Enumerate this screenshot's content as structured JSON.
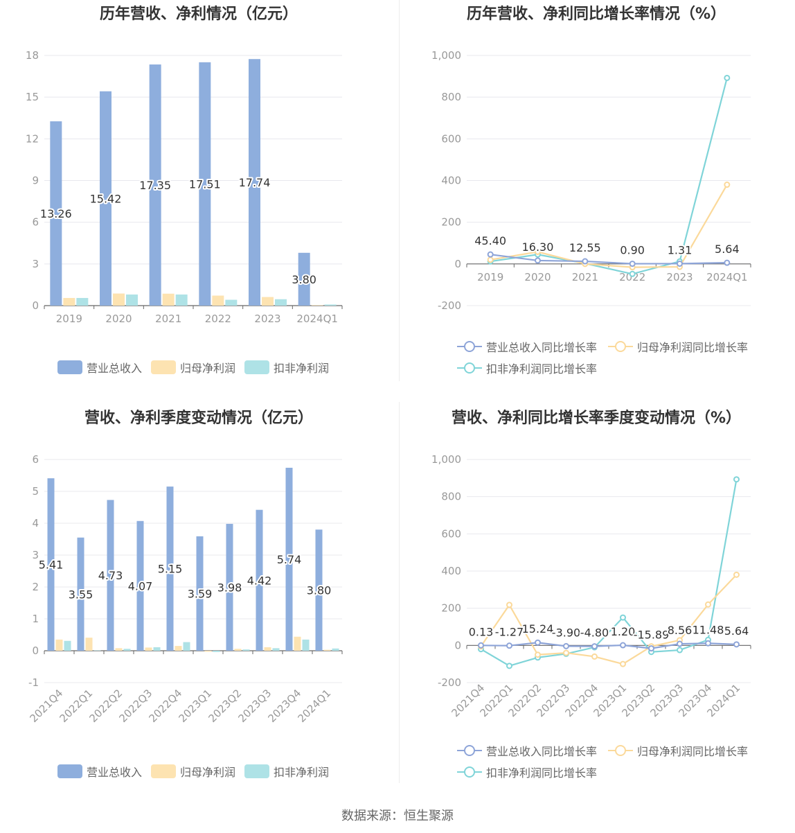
{
  "colors": {
    "revenue": "#8eaedd",
    "parent_net": "#fde3b1",
    "deducted_net": "#aee2e6",
    "revenue_line": "#8da4d8",
    "parent_line": "#fbd99a",
    "deducted_line": "#7fd4d8"
  },
  "source_text": "数据来源：恒生聚源",
  "legend_bar": [
    "营业总收入",
    "归母净利润",
    "扣非净利润"
  ],
  "legend_line": [
    "营业总收入同比增长率",
    "归母净利润同比增长率",
    "扣非净利润同比增长率"
  ],
  "chart_data": [
    {
      "type": "bar",
      "title": "历年营收、净利情况（亿元）",
      "categories": [
        "2019",
        "2020",
        "2021",
        "2022",
        "2023",
        "2024Q1"
      ],
      "series": [
        {
          "name": "营业总收入",
          "values": [
            13.26,
            15.42,
            17.35,
            17.51,
            17.74,
            3.8
          ]
        },
        {
          "name": "归母净利润",
          "values": [
            0.55,
            0.87,
            0.86,
            0.72,
            0.62,
            0.03
          ]
        },
        {
          "name": "扣非净利润",
          "values": [
            0.55,
            0.8,
            0.8,
            0.42,
            0.46,
            0.08
          ]
        }
      ],
      "value_labels": [
        "13.26",
        "15.42",
        "17.35",
        "17.51",
        "17.74",
        "3.80"
      ],
      "yticks": [
        "0",
        "3",
        "6",
        "9",
        "12",
        "15",
        "18"
      ],
      "ylim": [
        0,
        18
      ]
    },
    {
      "type": "line",
      "title": "历年营收、净利同比增长率情况（%）",
      "categories": [
        "2019",
        "2020",
        "2021",
        "2022",
        "2023",
        "2024Q1"
      ],
      "series": [
        {
          "name": "营业总收入同比增长率",
          "values": [
            45.4,
            16.3,
            12.55,
            0.9,
            1.31,
            5.64
          ]
        },
        {
          "name": "归母净利润同比增长率",
          "values": [
            20,
            58,
            0,
            -16,
            -14,
            380
          ]
        },
        {
          "name": "扣非净利润同比增长率",
          "values": [
            12,
            45,
            2,
            -48,
            12,
            892
          ]
        }
      ],
      "value_labels": [
        "45.40",
        "16.30",
        "12.55",
        "0.90",
        "1.31",
        "5.64"
      ],
      "yticks": [
        "-200",
        "0",
        "200",
        "400",
        "600",
        "800",
        "1,000"
      ],
      "ylim": [
        -200,
        1000
      ]
    },
    {
      "type": "bar",
      "title": "营收、净利季度变动情况（亿元）",
      "categories": [
        "2021Q4",
        "2022Q1",
        "2022Q2",
        "2022Q3",
        "2022Q4",
        "2023Q1",
        "2023Q2",
        "2023Q3",
        "2023Q4",
        "2024Q1"
      ],
      "series": [
        {
          "name": "营业总收入",
          "values": [
            5.41,
            3.55,
            4.73,
            4.07,
            5.15,
            3.59,
            3.98,
            4.42,
            5.74,
            3.8
          ]
        },
        {
          "name": "归母净利润",
          "values": [
            0.35,
            0.41,
            0.08,
            0.1,
            0.15,
            -0.03,
            0.06,
            0.11,
            0.44,
            0.03
          ]
        },
        {
          "name": "扣非净利润",
          "values": [
            0.31,
            0.01,
            0.06,
            0.11,
            0.27,
            -0.04,
            0.04,
            0.08,
            0.35,
            0.07
          ]
        }
      ],
      "value_labels": [
        "5.41",
        "3.55",
        "4.73",
        "4.07",
        "5.15",
        "3.59",
        "3.98",
        "4.42",
        "5.74",
        "3.80"
      ],
      "yticks": [
        "-1",
        "0",
        "1",
        "2",
        "3",
        "4",
        "5",
        "6"
      ],
      "ylim": [
        -1,
        6
      ]
    },
    {
      "type": "line",
      "title": "营收、净利同比增长率季度变动情况（%）",
      "categories": [
        "2021Q4",
        "2022Q1",
        "2022Q2",
        "2022Q3",
        "2022Q4",
        "2023Q1",
        "2023Q2",
        "2023Q3",
        "2023Q4",
        "2024Q1"
      ],
      "series": [
        {
          "name": "营业总收入同比增长率",
          "values": [
            0.13,
            -1.27,
            15.24,
            -3.9,
            -4.8,
            1.2,
            -15.89,
            8.56,
            11.48,
            5.64
          ]
        },
        {
          "name": "归母净利润同比增长率",
          "values": [
            -5,
            218,
            -50,
            -40,
            -60,
            -100,
            -5,
            28,
            220,
            380
          ]
        },
        {
          "name": "扣非净利润同比增长率",
          "values": [
            -20,
            -110,
            -65,
            -45,
            -10,
            150,
            -35,
            -25,
            30,
            893
          ]
        }
      ],
      "value_labels": [
        "0.13",
        "-1.27",
        "15.24",
        "-3.90",
        "-4.80",
        "1.20",
        "-15.89",
        "8.56",
        "11.48",
        "5.64"
      ],
      "yticks": [
        "-200",
        "0",
        "200",
        "400",
        "600",
        "800",
        "1,000"
      ],
      "ylim": [
        -200,
        1000
      ]
    }
  ]
}
